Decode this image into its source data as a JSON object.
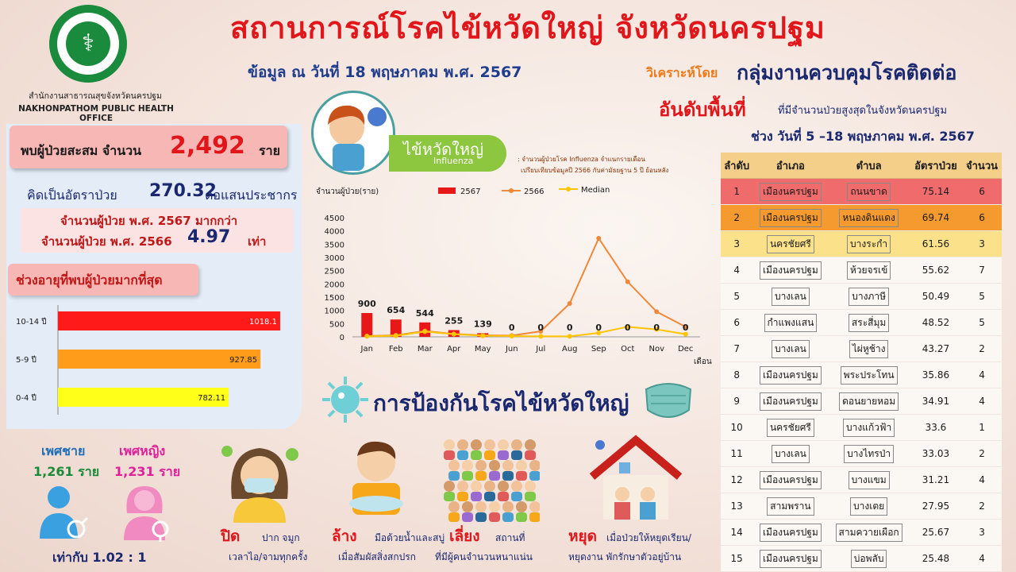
{
  "header": {
    "office_th": "สำนักงานสาธารณสุขจังหวัดนครปฐม",
    "office_en": "NAKHONPATHOM PUBLIC HEALTH OFFICE",
    "main_title": "สถานการณ์โรคไข้หวัดใหญ่ จังหวัดนครปฐม",
    "date_line": "ข้อมูล ณ วันที่ 18 พฤษภาคม พ.ศ. 2567",
    "analyzed_by_label": "วิเคราะห์โดย",
    "analyzed_by_group": "กลุ่มงานควบคุมโรคติดต่อ"
  },
  "summary": {
    "cumulative_prefix": "พบผู้ป่วยสะสม จำนวน",
    "cumulative_value": "2,492",
    "cumulative_unit": "ราย",
    "rate_label": "คิดเป็นอัตราป่วย",
    "rate_value": "270.32",
    "rate_unit": "ต่อแสนประชากร",
    "compare_line1": "จำนวนผู้ป่วย พ.ศ. 2567 มากกว่า",
    "compare_line2": "จำนวนผู้ป่วย พ.ศ. 2566",
    "compare_value": "4.97",
    "compare_unit": "เท่า"
  },
  "age_panel": {
    "title": "ช่วงอายุที่พบผู้ป่วยมากที่สุด"
  },
  "gender": {
    "male_label": "เพศชาย",
    "male_count": "1,261 ราย",
    "female_label": "เพศหญิง",
    "female_count": "1,231 ราย",
    "ratio": "เท่ากับ 1.02 : 1"
  },
  "flu_badge": {
    "th": "ไข้หวัดใหญ่",
    "en": "Influenza"
  },
  "chart_note": {
    "line1": ": จำนวนผู้ป่วยโรค Influenza จำแนกรายเดือน",
    "line2": "เปรียบเทียบข้อมูลปี 2566 กับค่ามัธยฐาน 5 ปี ย้อนหลัง"
  },
  "chart_data": [
    {
      "type": "bar",
      "orientation": "horizontal",
      "categories": [
        "10-14 ปี",
        "5-9 ปี",
        "0-4 ปี"
      ],
      "values": [
        1018.1,
        927.85,
        782.11
      ],
      "value_labels": [
        "1018.1",
        "927.85",
        "782.11"
      ],
      "colors": [
        "#ff1a1a",
        "#ff9c1a",
        "#ffff1a"
      ],
      "xlim": [
        0,
        1200
      ]
    },
    {
      "type": "bar+line",
      "ylabel": "จำนวนผู้ป่วย(ราย)",
      "xlabel": "เดือน",
      "categories": [
        "Jan",
        "Feb",
        "Mar",
        "Apr",
        "May",
        "Jun",
        "Jul",
        "Aug",
        "Sep",
        "Oct",
        "Nov",
        "Dec"
      ],
      "ylim": [
        0,
        4500
      ],
      "yticks": [
        0,
        500,
        1000,
        1500,
        2000,
        2500,
        3000,
        3500,
        4000,
        4500
      ],
      "series": [
        {
          "name": "2567",
          "kind": "bar",
          "color": "#e81818",
          "values": [
            900,
            654,
            544,
            255,
            139,
            0,
            0,
            0,
            0,
            0,
            0,
            0
          ],
          "labels": [
            "900",
            "654",
            "544",
            "255",
            "139",
            "0",
            "0",
            "0",
            "0",
            "0",
            "0",
            "0"
          ]
        },
        {
          "name": "2566",
          "kind": "line",
          "color": "#f0883a",
          "values": [
            30,
            60,
            220,
            110,
            60,
            50,
            210,
            1260,
            3720,
            2080,
            950,
            380
          ]
        },
        {
          "name": "Median",
          "kind": "line",
          "color": "#ffc400",
          "values": [
            20,
            40,
            200,
            100,
            40,
            30,
            20,
            20,
            150,
            380,
            280,
            100
          ]
        }
      ],
      "legend_position": "top"
    }
  ],
  "ranking": {
    "title": "อันดับพื้นที่",
    "subtitle": "ที่มีจำนวนป่วยสูงสุดในจังหวัดนครปฐม",
    "period": "ช่วง วันที่ 5 –18 พฤษภาคม พ.ศ. 2567",
    "columns": [
      "ลำดับ",
      "อำเภอ",
      "ตำบล",
      "อัตราป่วย",
      "จำนวน"
    ],
    "rows": [
      [
        "1",
        "เมืองนครปฐม",
        "ถนนขาด",
        "75.14",
        "6"
      ],
      [
        "2",
        "เมืองนครปฐม",
        "หนองดินแดง",
        "69.74",
        "6"
      ],
      [
        "3",
        "นครชัยศรี",
        "บางระกำ",
        "61.56",
        "3"
      ],
      [
        "4",
        "เมืองนครปฐม",
        "ห้วยจรเข้",
        "55.62",
        "7"
      ],
      [
        "5",
        "บางเลน",
        "บางภาษี",
        "50.49",
        "5"
      ],
      [
        "6",
        "กำแพงแสน",
        "สระสี่มุม",
        "48.52",
        "5"
      ],
      [
        "7",
        "บางเลน",
        "ไผ่หูช้าง",
        "43.27",
        "2"
      ],
      [
        "8",
        "เมืองนครปฐม",
        "พระประโทน",
        "35.86",
        "4"
      ],
      [
        "9",
        "เมืองนครปฐม",
        "ดอนยายหอม",
        "34.91",
        "4"
      ],
      [
        "10",
        "นครชัยศรี",
        "บางแก้วฟ้า",
        "33.6",
        "1"
      ],
      [
        "11",
        "บางเลน",
        "บางไทรป่า",
        "33.03",
        "2"
      ],
      [
        "12",
        "เมืองนครปฐม",
        "บางแขม",
        "31.21",
        "4"
      ],
      [
        "13",
        "สามพราน",
        "บางเตย",
        "27.95",
        "2"
      ],
      [
        "14",
        "เมืองนครปฐม",
        "สามควายเผือก",
        "25.67",
        "3"
      ],
      [
        "15",
        "เมืองนครปฐม",
        "บ่อพลับ",
        "25.48",
        "4"
      ]
    ]
  },
  "prevention": {
    "title": "การป้องกันโรคไข้หวัดใหญ่",
    "items": [
      {
        "head": "ปิด",
        "sub": "ปาก จมูก",
        "line2": "เวลาไอ/จามทุกครั้ง",
        "icon": "mask-person-icon"
      },
      {
        "head": "ล้าง",
        "sub": "มือด้วยน้ำและสบู่",
        "line2": "เมื่อสัมผัสสิ่งสกปรก",
        "icon": "handwash-child-icon"
      },
      {
        "head": "เลี่ยง",
        "sub": "สถานที่",
        "line2": "ที่มีผู้คนจำนวนหนาแน่น",
        "icon": "crowd-icon"
      },
      {
        "head": "หยุด",
        "sub": "เมื่อป่วยให้หยุดเรียน/",
        "line2": "หยุดงาน พักรักษาตัวอยู่บ้าน",
        "icon": "house-family-icon"
      }
    ]
  },
  "colors": {
    "title_red": "#e0161a",
    "navy": "#1a2870",
    "orange": "#f07a1a",
    "rank1": "#f06b6b",
    "rank2": "#f59a2e",
    "rank3": "#fbe28a"
  }
}
